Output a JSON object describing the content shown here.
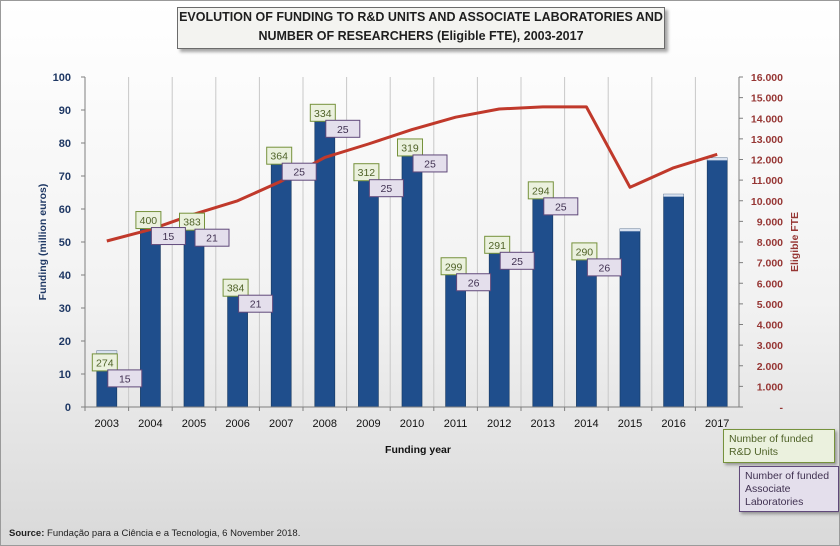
{
  "chart_data": {
    "type": "bar+line",
    "title_line1": "EVOLUTION OF FUNDING TO R&D UNITS AND ASSOCIATE LABORATORIES AND",
    "title_line2": "NUMBER OF RESEARCHERS (Eligible FTE), 2003-2017",
    "xlabel": "Funding year",
    "ylabel_left": "Funding (million euros)",
    "ylabel_right": "Eligible FTE",
    "categories": [
      "2003",
      "2004",
      "2005",
      "2006",
      "2007",
      "2008",
      "2009",
      "2010",
      "2011",
      "2012",
      "2013",
      "2014",
      "2015",
      "2016",
      "2017"
    ],
    "ylim_left": [
      0,
      100
    ],
    "yticks_left": [
      "0",
      "10",
      "20",
      "30",
      "40",
      "50",
      "60",
      "70",
      "80",
      "90",
      "100"
    ],
    "ylim_right": [
      0,
      16000
    ],
    "yticks_right": [
      "-",
      "1.000",
      "2.000",
      "3.000",
      "4.000",
      "5.000",
      "6.000",
      "7.000",
      "8.000",
      "9.000",
      "10.000",
      "11.000",
      "12.000",
      "13.000",
      "14.000",
      "15.000",
      "16.000"
    ],
    "grid": "vertical",
    "series": [
      {
        "type": "bar",
        "axis": "left",
        "color": "#1f4e8c",
        "values": [
          17,
          56.5,
          56,
          36,
          76,
          89,
          71,
          78.5,
          42.5,
          49,
          65.5,
          47,
          54,
          64.5,
          75.5
        ]
      },
      {
        "type": "line",
        "axis": "right",
        "color": "#c0392b",
        "values": [
          8050,
          8600,
          9350,
          10000,
          10950,
          12100,
          12750,
          13450,
          14050,
          14450,
          14550,
          14550,
          10650,
          11600,
          12250
        ]
      }
    ],
    "rd_units_labels": [
      "274",
      "400",
      "383",
      "384",
      "364",
      "334",
      "312",
      "319",
      "299",
      "291",
      "294",
      "290",
      "",
      "",
      ""
    ],
    "assoc_labs_labels": [
      "15",
      "15",
      "21",
      "21",
      "25",
      "25",
      "25",
      "25",
      "26",
      "25",
      "25",
      "26",
      "",
      "",
      ""
    ]
  },
  "legend": {
    "rd_units": "Number of funded R&D Units",
    "assoc_labs": "Number of funded Associate Laboratories"
  },
  "source": {
    "label": "Source:",
    "text": " Fundação para a Ciência e a Tecnologia, 6 November 2018."
  },
  "colors": {
    "bar": "#1f4e8c",
    "line": "#c0392b",
    "axis_left_text": "#1f3864",
    "axis_right_text": "#963634",
    "rd_label_fill": "#ebf1de",
    "rd_label_stroke": "#76923c",
    "al_label_fill": "#e4dfec",
    "al_label_stroke": "#60497a"
  }
}
